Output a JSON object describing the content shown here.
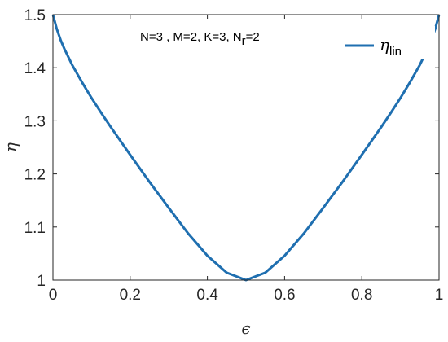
{
  "chart_data": {
    "type": "line",
    "xlabel": "ϵ",
    "ylabel": "η",
    "xlim": [
      0,
      1
    ],
    "ylim": [
      1,
      1.5
    ],
    "xticks": [
      0,
      0.2,
      0.4,
      0.6,
      0.8,
      1
    ],
    "yticks": [
      1,
      1.1,
      1.2,
      1.3,
      1.4,
      1.5
    ],
    "xtick_labels": [
      "0",
      "0.2",
      "0.4",
      "0.6",
      "0.8",
      "1"
    ],
    "ytick_labels": [
      "1",
      "1.1",
      "1.2",
      "1.3",
      "1.4",
      "1.5"
    ],
    "grid": false,
    "legend_position": "top-right",
    "annotation": {
      "text_main": "N=3 , M=2, K=3, N",
      "text_sub": "r",
      "text_tail": "=2"
    },
    "series": [
      {
        "name": "η_lin",
        "legend_main": "η",
        "legend_sub": "lin",
        "color": "#1f6fb0",
        "x": [
          0,
          0.01,
          0.02,
          0.03,
          0.05,
          0.075,
          0.1,
          0.125,
          0.15,
          0.2,
          0.25,
          0.3,
          0.35,
          0.4,
          0.45,
          0.5,
          0.55,
          0.6,
          0.65,
          0.7,
          0.75,
          0.8,
          0.85,
          0.875,
          0.9,
          0.925,
          0.95,
          0.97,
          0.98,
          0.99,
          1
        ],
        "y": [
          1.5,
          1.473,
          1.452,
          1.435,
          1.405,
          1.373,
          1.343,
          1.315,
          1.288,
          1.236,
          1.185,
          1.136,
          1.088,
          1.046,
          1.014,
          1.0,
          1.014,
          1.046,
          1.088,
          1.136,
          1.185,
          1.236,
          1.288,
          1.315,
          1.343,
          1.373,
          1.405,
          1.435,
          1.452,
          1.473,
          1.5
        ]
      }
    ]
  }
}
